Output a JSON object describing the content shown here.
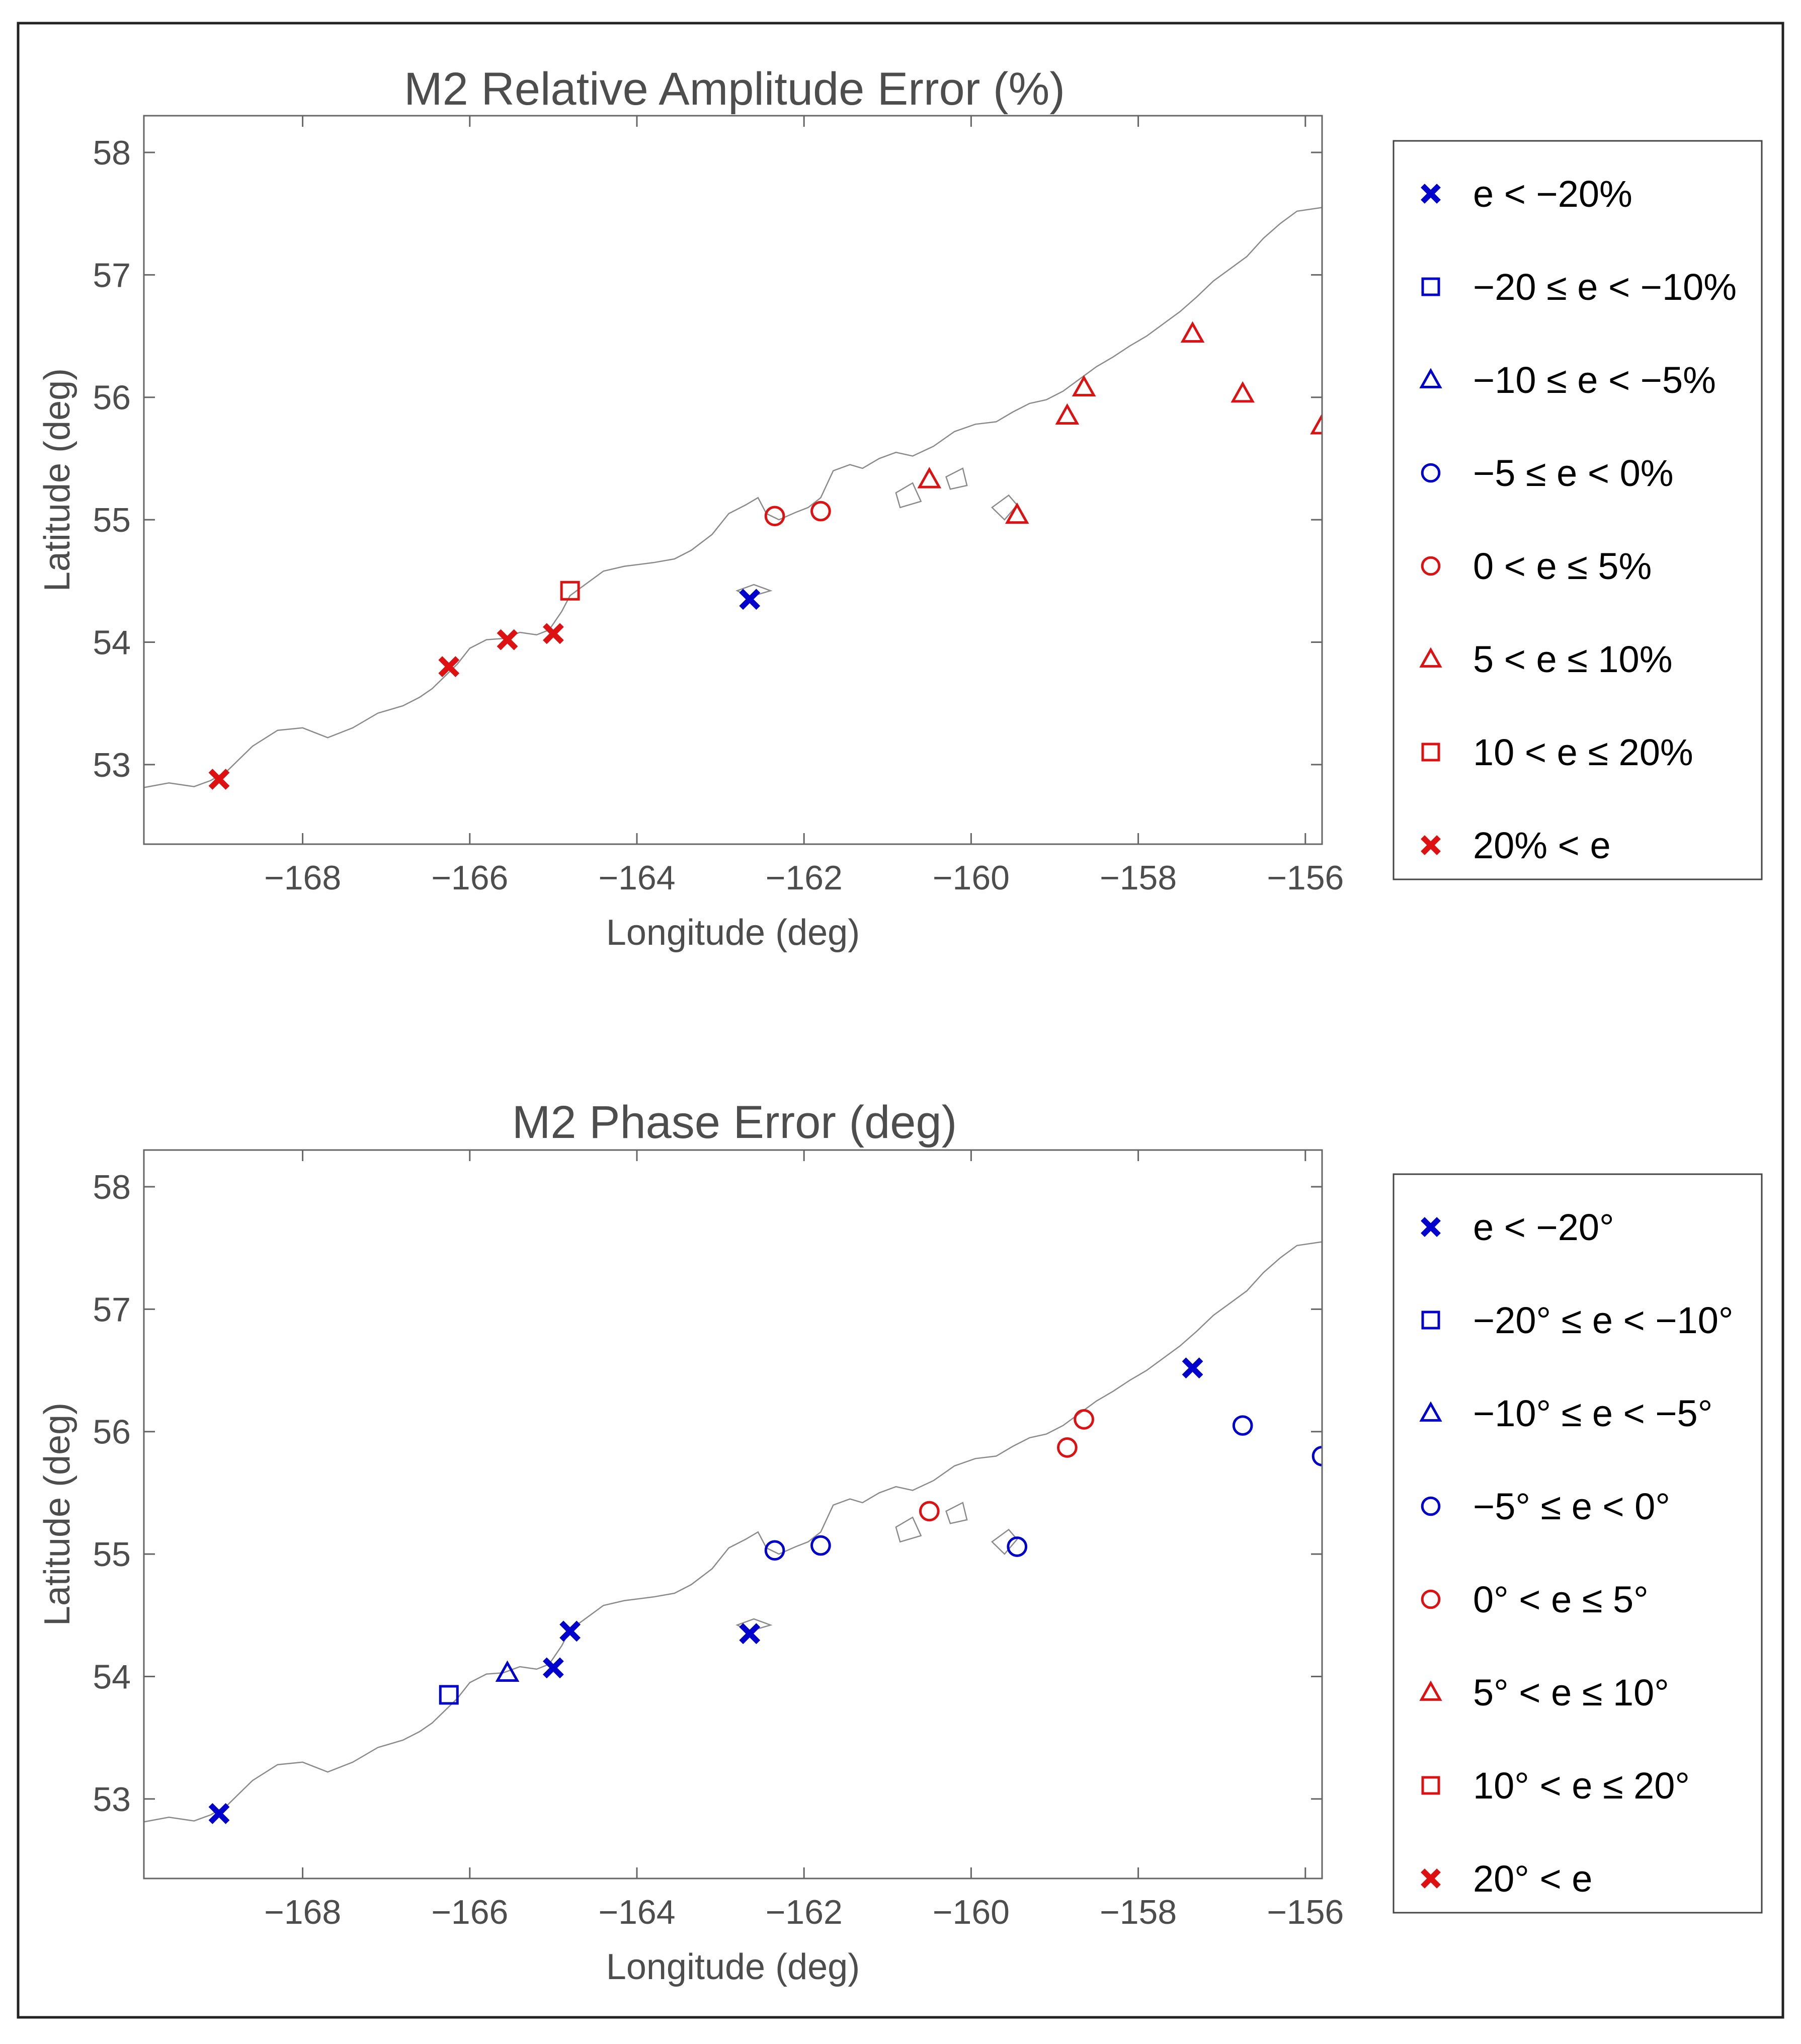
{
  "chart_data": [
    {
      "type": "scatter",
      "title": "M2 Relative Amplitude Error (%)",
      "xlabel": "Longitude (deg)",
      "ylabel": "Latitude (deg)",
      "xlim": [
        -169.9,
        -155.8
      ],
      "ylim": [
        52.35,
        58.3
      ],
      "xticks": [
        -168,
        -166,
        -164,
        -162,
        -160,
        -158,
        -156
      ],
      "xtick_labels": [
        "−168",
        "−166",
        "−164",
        "−162",
        "−160",
        "−158",
        "−156"
      ],
      "yticks": [
        53,
        54,
        55,
        56,
        57,
        58
      ],
      "ytick_labels": [
        "53",
        "54",
        "55",
        "56",
        "57",
        "58"
      ],
      "grid": false,
      "legend_position": "right",
      "categories": [
        {
          "label": "e < −20%",
          "marker": "x",
          "color": "#0000cc"
        },
        {
          "label": "−20 ≤ e < −10%",
          "marker": "square",
          "color": "#0000cc"
        },
        {
          "label": "−10 ≤ e < −5%",
          "marker": "triangle",
          "color": "#0000cc"
        },
        {
          "label": "−5 ≤ e < 0%",
          "marker": "circle",
          "color": "#0000cc"
        },
        {
          "label": "0 < e ≤ 5%",
          "marker": "circle",
          "color": "#dd1111"
        },
        {
          "label": "5 < e ≤ 10%",
          "marker": "triangle",
          "color": "#dd1111"
        },
        {
          "label": "10 < e ≤ 20%",
          "marker": "square",
          "color": "#dd1111"
        },
        {
          "label": "20% < e",
          "marker": "x",
          "color": "#dd1111"
        }
      ],
      "points": [
        {
          "x": -169.0,
          "y": 52.88,
          "category": 7
        },
        {
          "x": -166.25,
          "y": 53.8,
          "category": 7
        },
        {
          "x": -165.55,
          "y": 54.02,
          "category": 7
        },
        {
          "x": -165.0,
          "y": 54.07,
          "category": 7
        },
        {
          "x": -164.8,
          "y": 54.42,
          "category": 6
        },
        {
          "x": -162.65,
          "y": 54.35,
          "category": 0
        },
        {
          "x": -162.35,
          "y": 55.03,
          "category": 4
        },
        {
          "x": -161.8,
          "y": 55.07,
          "category": 4
        },
        {
          "x": -160.5,
          "y": 55.33,
          "category": 5
        },
        {
          "x": -159.45,
          "y": 55.04,
          "category": 5
        },
        {
          "x": -158.85,
          "y": 55.85,
          "category": 5
        },
        {
          "x": -158.65,
          "y": 56.08,
          "category": 5
        },
        {
          "x": -157.35,
          "y": 56.52,
          "category": 5
        },
        {
          "x": -156.75,
          "y": 56.03,
          "category": 5
        },
        {
          "x": -155.8,
          "y": 55.77,
          "category": 5
        }
      ]
    },
    {
      "type": "scatter",
      "title": "M2 Phase Error (deg)",
      "xlabel": "Longitude (deg)",
      "ylabel": "Latitude (deg)",
      "xlim": [
        -169.9,
        -155.8
      ],
      "ylim": [
        52.35,
        58.3
      ],
      "xticks": [
        -168,
        -166,
        -164,
        -162,
        -160,
        -158,
        -156
      ],
      "xtick_labels": [
        "−168",
        "−166",
        "−164",
        "−162",
        "−160",
        "−158",
        "−156"
      ],
      "yticks": [
        53,
        54,
        55,
        56,
        57,
        58
      ],
      "ytick_labels": [
        "53",
        "54",
        "55",
        "56",
        "57",
        "58"
      ],
      "grid": false,
      "legend_position": "right",
      "categories": [
        {
          "label": "e < −20°",
          "marker": "x",
          "color": "#0000cc"
        },
        {
          "label": "−20° ≤ e < −10°",
          "marker": "square",
          "color": "#0000cc"
        },
        {
          "label": "−10° ≤ e < −5°",
          "marker": "triangle",
          "color": "#0000cc"
        },
        {
          "label": "−5° ≤ e < 0°",
          "marker": "circle",
          "color": "#0000cc"
        },
        {
          "label": "0° < e ≤ 5°",
          "marker": "circle",
          "color": "#dd1111"
        },
        {
          "label": "5° < e ≤ 10°",
          "marker": "triangle",
          "color": "#dd1111"
        },
        {
          "label": "10° < e ≤ 20°",
          "marker": "square",
          "color": "#dd1111"
        },
        {
          "label": "20° < e",
          "marker": "x",
          "color": "#dd1111"
        }
      ],
      "points": [
        {
          "x": -169.0,
          "y": 52.88,
          "category": 0
        },
        {
          "x": -166.25,
          "y": 53.85,
          "category": 1
        },
        {
          "x": -165.55,
          "y": 54.03,
          "category": 2
        },
        {
          "x": -165.0,
          "y": 54.07,
          "category": 0
        },
        {
          "x": -164.8,
          "y": 54.37,
          "category": 0
        },
        {
          "x": -162.65,
          "y": 54.35,
          "category": 0
        },
        {
          "x": -162.35,
          "y": 55.03,
          "category": 3
        },
        {
          "x": -161.8,
          "y": 55.07,
          "category": 3
        },
        {
          "x": -160.5,
          "y": 55.35,
          "category": 4
        },
        {
          "x": -159.45,
          "y": 55.06,
          "category": 3
        },
        {
          "x": -158.85,
          "y": 55.87,
          "category": 4
        },
        {
          "x": -158.65,
          "y": 56.1,
          "category": 4
        },
        {
          "x": -157.35,
          "y": 56.52,
          "category": 0
        },
        {
          "x": -156.75,
          "y": 56.05,
          "category": 3
        },
        {
          "x": -155.8,
          "y": 55.8,
          "category": 3
        }
      ]
    }
  ]
}
